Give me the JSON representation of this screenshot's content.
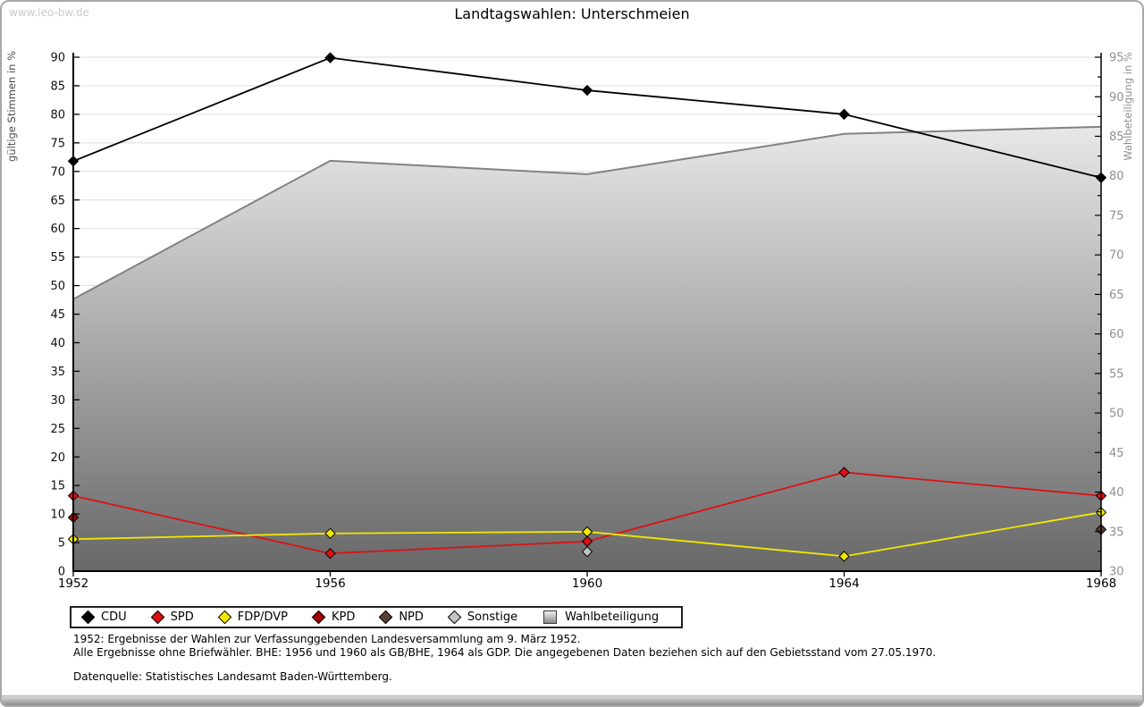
{
  "window": {
    "watermark": "www.leo-bw.de"
  },
  "title": "Landtagswahlen: Unterschmeien",
  "chart_data": {
    "type": "line",
    "x": [
      1952,
      1956,
      1960,
      1964,
      1968
    ],
    "left_axis": {
      "label": "gültige Stimmen in %",
      "min": 0,
      "max": 90,
      "step": 5
    },
    "right_axis": {
      "label": "Wahlbeteiligung in %",
      "min": 30,
      "max": 95,
      "step": 5
    },
    "grid": "horizontal",
    "legend_position": "bottom",
    "series": [
      {
        "name": "CDU",
        "color": "#000000",
        "axis": "left",
        "kind": "line",
        "values": [
          71.8,
          89.9,
          84.2,
          80.0,
          68.9
        ]
      },
      {
        "name": "SPD",
        "color": "#dd1015",
        "axis": "left",
        "kind": "line",
        "values": [
          13.2,
          3.1,
          5.2,
          17.3,
          13.2
        ]
      },
      {
        "name": "FDP/DVP",
        "color": "#f2e800",
        "axis": "left",
        "kind": "line",
        "values": [
          5.6,
          6.6,
          6.9,
          2.6,
          10.3
        ]
      },
      {
        "name": "KPD",
        "color": "#a00000",
        "axis": "left",
        "kind": "points",
        "values": [
          9.4,
          null,
          null,
          null,
          null
        ]
      },
      {
        "name": "NPD",
        "color": "#5b4135",
        "axis": "left",
        "kind": "points",
        "values": [
          null,
          null,
          null,
          null,
          7.3
        ]
      },
      {
        "name": "Sonstige",
        "color": "#c4c4c4",
        "axis": "left",
        "kind": "points",
        "values": [
          null,
          null,
          3.4,
          null,
          null
        ]
      },
      {
        "name": "Wahlbeteiligung",
        "color": "#828282",
        "axis": "right",
        "kind": "area",
        "values": [
          64.4,
          81.9,
          80.2,
          85.3,
          86.2
        ]
      }
    ],
    "colors": {
      "gridline": "#dcdcdc",
      "axis": "#000000",
      "right_axis_text": "#8f8f8f",
      "left_axis_title": "#4a4a4a",
      "area_gradient_top": "#fcfcfc",
      "area_gradient_bottom": "#686868"
    }
  },
  "footnotes": [
    "1952: Ergebnisse der Wahlen zur Verfassunggebenden Landesversammlung am 9. März 1952.",
    "Alle Ergebnisse ohne Briefwähler. BHE: 1956 und 1960 als GB/BHE, 1964 als GDP. Die angegebenen Daten beziehen sich auf den Gebietsstand vom 27.05.1970.",
    "Datenquelle: Statistisches Landesamt Baden-Württemberg."
  ]
}
